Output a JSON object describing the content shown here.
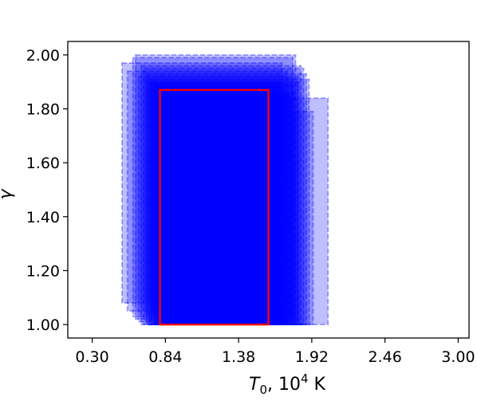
{
  "chart_data": {
    "type": "box-overlay",
    "title": "",
    "xlabel": "T0, 10^4 K",
    "xlabel_parts": {
      "symbol": "T",
      "subscript": "0",
      "mid": ", 10",
      "superscript": "4",
      "unit": " K"
    },
    "ylabel": "γ",
    "xlim": [
      0.12,
      3.08
    ],
    "ylim": [
      0.95,
      2.05
    ],
    "x_ticks": [
      0.3,
      0.84,
      1.38,
      1.92,
      2.46,
      3.0
    ],
    "x_tick_labels": [
      "0.30",
      "0.84",
      "1.38",
      "1.92",
      "2.46",
      "3.00"
    ],
    "y_ticks": [
      1.0,
      1.2,
      1.4,
      1.6,
      1.8,
      2.0
    ],
    "y_tick_labels": [
      "1.00",
      "1.20",
      "1.40",
      "1.60",
      "1.80",
      "2.00"
    ],
    "grid": false,
    "legend": "none",
    "colors": {
      "sample_fill": "#0000ff",
      "sample_edge": "#0000ff",
      "highlight_edge": "#ff0000"
    },
    "sample_boxes": [
      {
        "x0": 0.52,
        "x1": 1.7,
        "y0": 1.08,
        "y1": 1.97
      },
      {
        "x0": 0.56,
        "x1": 1.74,
        "y0": 1.05,
        "y1": 1.94
      },
      {
        "x0": 0.6,
        "x1": 1.78,
        "y0": 1.03,
        "y1": 1.99
      },
      {
        "x0": 0.62,
        "x1": 1.8,
        "y0": 1.02,
        "y1": 2.0
      },
      {
        "x0": 0.64,
        "x1": 1.82,
        "y0": 1.01,
        "y1": 1.92
      },
      {
        "x0": 0.66,
        "x1": 1.84,
        "y0": 1.0,
        "y1": 1.96
      },
      {
        "x0": 0.68,
        "x1": 1.86,
        "y0": 1.0,
        "y1": 1.95
      },
      {
        "x0": 0.7,
        "x1": 1.88,
        "y0": 1.0,
        "y1": 1.93
      },
      {
        "x0": 0.72,
        "x1": 1.9,
        "y0": 1.0,
        "y1": 1.91
      },
      {
        "x0": 0.74,
        "x1": 1.82,
        "y0": 1.0,
        "y1": 1.9
      },
      {
        "x0": 0.76,
        "x1": 1.78,
        "y0": 1.0,
        "y1": 1.89
      },
      {
        "x0": 0.78,
        "x1": 1.72,
        "y0": 1.0,
        "y1": 1.88
      },
      {
        "x0": 0.7,
        "x1": 1.68,
        "y0": 1.0,
        "y1": 1.9
      },
      {
        "x0": 0.73,
        "x1": 1.66,
        "y0": 1.0,
        "y1": 1.89
      },
      {
        "x0": 0.76,
        "x1": 1.64,
        "y0": 1.0,
        "y1": 1.88
      },
      {
        "x0": 0.79,
        "x1": 1.62,
        "y0": 1.0,
        "y1": 1.87
      },
      {
        "x0": 0.82,
        "x1": 1.8,
        "y0": 1.0,
        "y1": 1.86
      },
      {
        "x0": 0.84,
        "x1": 1.76,
        "y0": 1.0,
        "y1": 1.85
      },
      {
        "x0": 0.86,
        "x1": 1.74,
        "y0": 1.0,
        "y1": 1.84
      },
      {
        "x0": 0.88,
        "x1": 1.7,
        "y0": 1.0,
        "y1": 1.83
      },
      {
        "x0": 0.9,
        "x1": 1.66,
        "y0": 1.0,
        "y1": 1.82
      },
      {
        "x0": 0.92,
        "x1": 1.62,
        "y0": 1.0,
        "y1": 1.81
      },
      {
        "x0": 0.95,
        "x1": 1.93,
        "y0": 1.0,
        "y1": 1.79
      },
      {
        "x0": 0.98,
        "x1": 2.04,
        "y0": 1.0,
        "y1": 1.84
      }
    ],
    "highlight_box": {
      "x0": 0.8,
      "x1": 1.6,
      "y0": 1.0,
      "y1": 1.87
    }
  }
}
